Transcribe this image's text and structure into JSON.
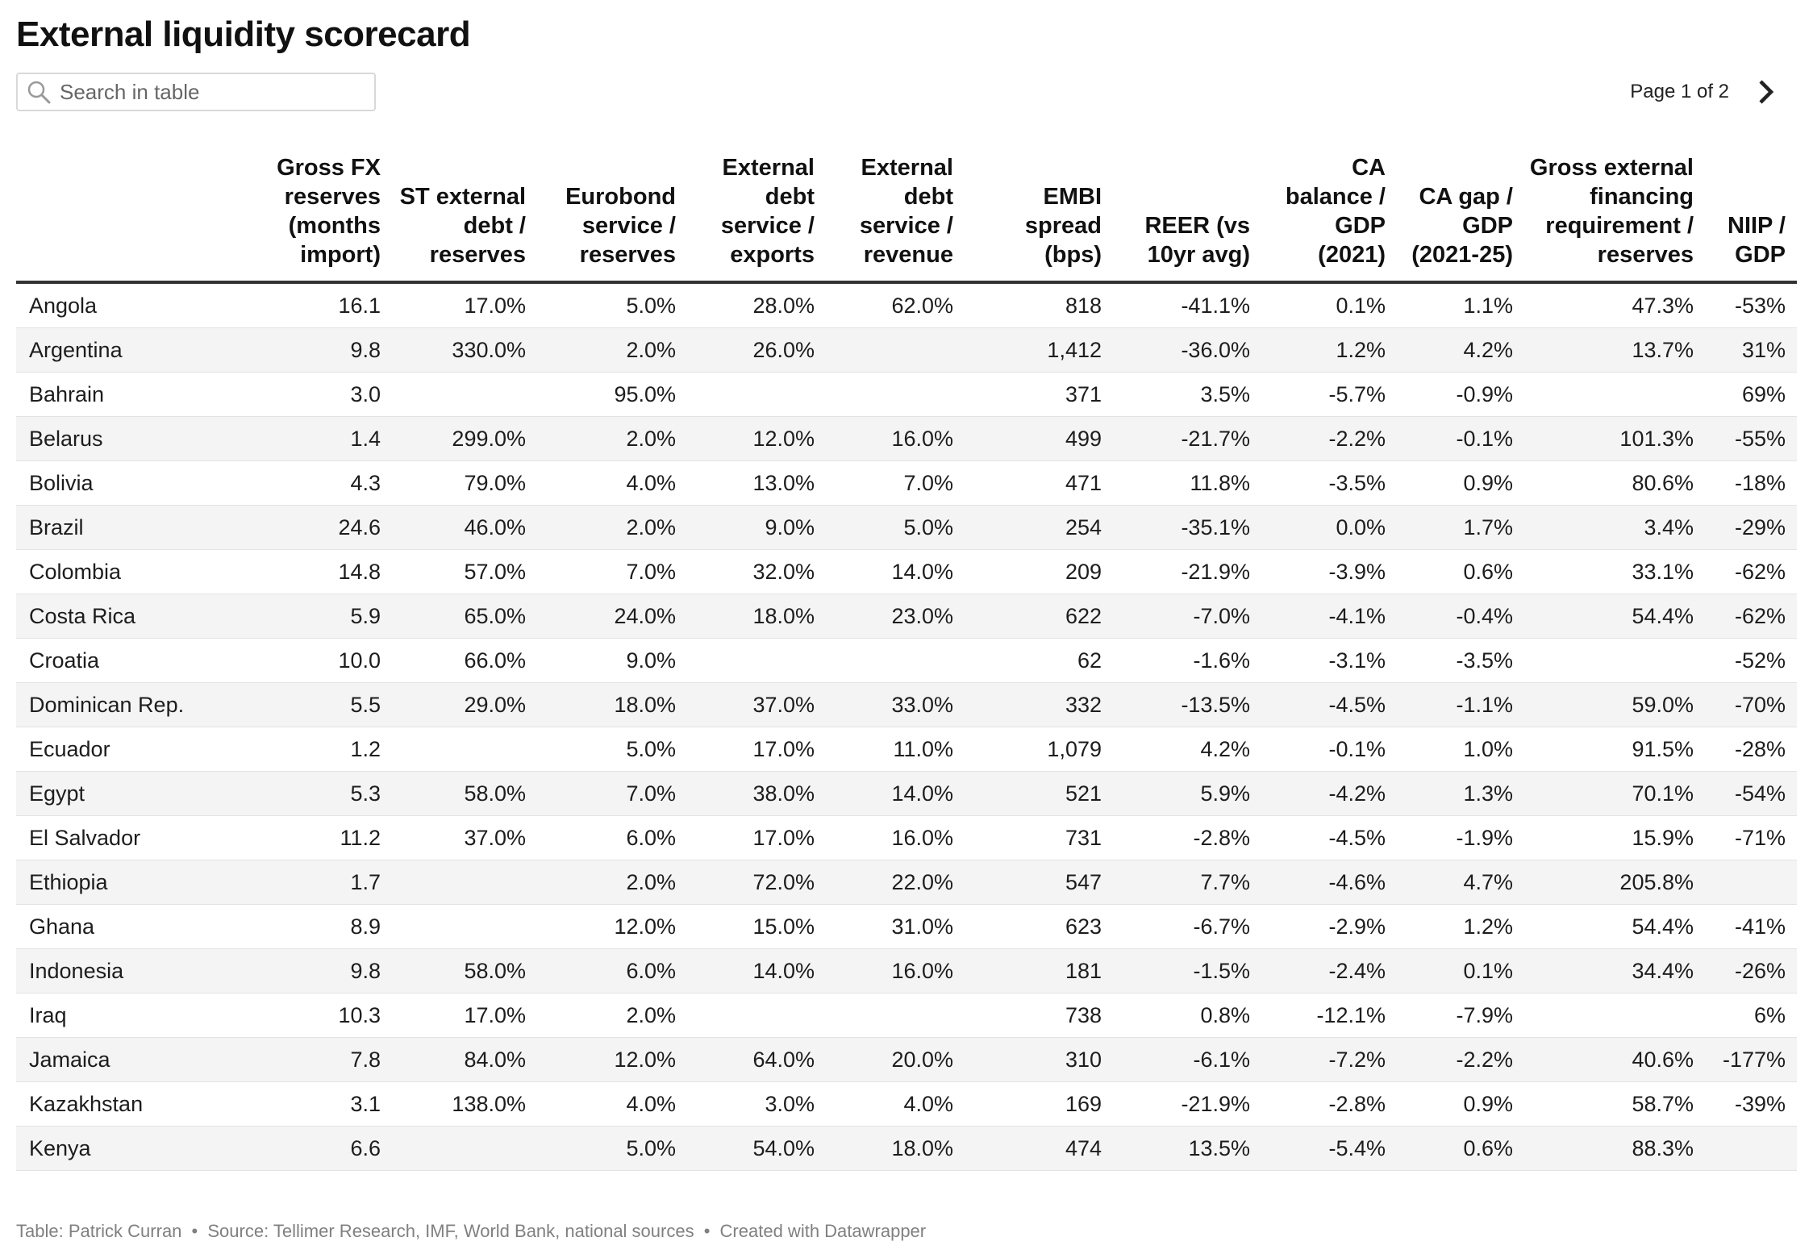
{
  "title": "External liquidity scorecard",
  "search": {
    "placeholder": "Search in table"
  },
  "pager": {
    "label": "Page 1 of 2"
  },
  "columns": [
    "",
    "Gross FX reserves (months import)",
    "ST external debt / reserves",
    "Eurobond service / reserves",
    "External debt service / exports",
    "External debt service / revenue",
    "EMBI spread (bps)",
    "REER (vs 10yr avg)",
    "CA balance / GDP (2021)",
    "CA gap / GDP (2021-25)",
    "Gross external financing requirement / reserves",
    "NIIP / GDP"
  ],
  "rows": [
    [
      "Angola",
      "16.1",
      "17.0%",
      "5.0%",
      "28.0%",
      "62.0%",
      "818",
      "-41.1%",
      "0.1%",
      "1.1%",
      "47.3%",
      "-53%"
    ],
    [
      "Argentina",
      "9.8",
      "330.0%",
      "2.0%",
      "26.0%",
      "",
      "1,412",
      "-36.0%",
      "1.2%",
      "4.2%",
      "13.7%",
      "31%"
    ],
    [
      "Bahrain",
      "3.0",
      "",
      "95.0%",
      "",
      "",
      "371",
      "3.5%",
      "-5.7%",
      "-0.9%",
      "",
      "69%"
    ],
    [
      "Belarus",
      "1.4",
      "299.0%",
      "2.0%",
      "12.0%",
      "16.0%",
      "499",
      "-21.7%",
      "-2.2%",
      "-0.1%",
      "101.3%",
      "-55%"
    ],
    [
      "Bolivia",
      "4.3",
      "79.0%",
      "4.0%",
      "13.0%",
      "7.0%",
      "471",
      "11.8%",
      "-3.5%",
      "0.9%",
      "80.6%",
      "-18%"
    ],
    [
      "Brazil",
      "24.6",
      "46.0%",
      "2.0%",
      "9.0%",
      "5.0%",
      "254",
      "-35.1%",
      "0.0%",
      "1.7%",
      "3.4%",
      "-29%"
    ],
    [
      "Colombia",
      "14.8",
      "57.0%",
      "7.0%",
      "32.0%",
      "14.0%",
      "209",
      "-21.9%",
      "-3.9%",
      "0.6%",
      "33.1%",
      "-62%"
    ],
    [
      "Costa Rica",
      "5.9",
      "65.0%",
      "24.0%",
      "18.0%",
      "23.0%",
      "622",
      "-7.0%",
      "-4.1%",
      "-0.4%",
      "54.4%",
      "-62%"
    ],
    [
      "Croatia",
      "10.0",
      "66.0%",
      "9.0%",
      "",
      "",
      "62",
      "-1.6%",
      "-3.1%",
      "-3.5%",
      "",
      "-52%"
    ],
    [
      "Dominican Rep.",
      "5.5",
      "29.0%",
      "18.0%",
      "37.0%",
      "33.0%",
      "332",
      "-13.5%",
      "-4.5%",
      "-1.1%",
      "59.0%",
      "-70%"
    ],
    [
      "Ecuador",
      "1.2",
      "",
      "5.0%",
      "17.0%",
      "11.0%",
      "1,079",
      "4.2%",
      "-0.1%",
      "1.0%",
      "91.5%",
      "-28%"
    ],
    [
      "Egypt",
      "5.3",
      "58.0%",
      "7.0%",
      "38.0%",
      "14.0%",
      "521",
      "5.9%",
      "-4.2%",
      "1.3%",
      "70.1%",
      "-54%"
    ],
    [
      "El Salvador",
      "11.2",
      "37.0%",
      "6.0%",
      "17.0%",
      "16.0%",
      "731",
      "-2.8%",
      "-4.5%",
      "-1.9%",
      "15.9%",
      "-71%"
    ],
    [
      "Ethiopia",
      "1.7",
      "",
      "2.0%",
      "72.0%",
      "22.0%",
      "547",
      "7.7%",
      "-4.6%",
      "4.7%",
      "205.8%",
      ""
    ],
    [
      "Ghana",
      "8.9",
      "",
      "12.0%",
      "15.0%",
      "31.0%",
      "623",
      "-6.7%",
      "-2.9%",
      "1.2%",
      "54.4%",
      "-41%"
    ],
    [
      "Indonesia",
      "9.8",
      "58.0%",
      "6.0%",
      "14.0%",
      "16.0%",
      "181",
      "-1.5%",
      "-2.4%",
      "0.1%",
      "34.4%",
      "-26%"
    ],
    [
      "Iraq",
      "10.3",
      "17.0%",
      "2.0%",
      "",
      "",
      "738",
      "0.8%",
      "-12.1%",
      "-7.9%",
      "",
      "6%"
    ],
    [
      "Jamaica",
      "7.8",
      "84.0%",
      "12.0%",
      "64.0%",
      "20.0%",
      "310",
      "-6.1%",
      "-7.2%",
      "-2.2%",
      "40.6%",
      "-177%"
    ],
    [
      "Kazakhstan",
      "3.1",
      "138.0%",
      "4.0%",
      "3.0%",
      "4.0%",
      "169",
      "-21.9%",
      "-2.8%",
      "0.9%",
      "58.7%",
      "-39%"
    ],
    [
      "Kenya",
      "6.6",
      "",
      "5.0%",
      "54.0%",
      "18.0%",
      "474",
      "13.5%",
      "-5.4%",
      "0.6%",
      "88.3%",
      ""
    ]
  ],
  "footer": {
    "author": "Table: Patrick Curran",
    "source": "Source: Tellimer Research, IMF, World Bank, national sources",
    "credit": "Created with Datawrapper",
    "separator": "•"
  }
}
